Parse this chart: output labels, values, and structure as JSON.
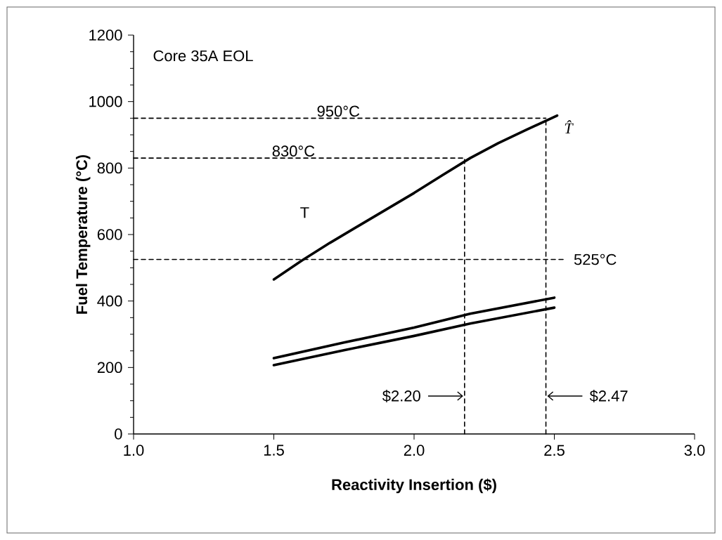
{
  "chart_data": {
    "type": "line",
    "xlabel": "Reactivity Insertion ($)",
    "ylabel": "Fuel Temperature (°C)",
    "xlim": [
      1,
      3
    ],
    "ylim": [
      0,
      1200
    ],
    "xticks": [
      {
        "value": 1,
        "label": "1.0"
      },
      {
        "value": 1.5,
        "label": "1.5"
      },
      {
        "value": 2,
        "label": "2.0"
      },
      {
        "value": 2.5,
        "label": "2.5"
      },
      {
        "value": 3,
        "label": "3.0"
      }
    ],
    "yticks": [
      0,
      {
        "value": 50,
        "label": null
      },
      {
        "value": 100,
        "label": null
      },
      {
        "value": 150,
        "label": null
      },
      200,
      {
        "value": 250,
        "label": null
      },
      {
        "value": 300,
        "label": null
      },
      {
        "value": 350,
        "label": null
      },
      400,
      {
        "value": 450,
        "label": null
      },
      {
        "value": 500,
        "label": null
      },
      {
        "value": 550,
        "label": null
      },
      600,
      {
        "value": 650,
        "label": null
      },
      {
        "value": 700,
        "label": null
      },
      {
        "value": 750,
        "label": null
      },
      800,
      {
        "value": 850,
        "label": null
      },
      {
        "value": 900,
        "label": null
      },
      {
        "value": 950,
        "label": null
      },
      1000,
      {
        "value": 1050,
        "label": null
      },
      {
        "value": 1100,
        "label": null
      },
      {
        "value": 1150,
        "label": null
      },
      1200
    ],
    "grid": false,
    "marker": "none",
    "line_style": "solid",
    "series": [
      {
        "color": "#000000",
        "x": [
          1.5,
          1.6,
          1.7,
          1.8,
          1.9,
          2.0,
          2.1,
          2.2,
          2.3,
          2.4,
          2.51
        ],
        "values": [
          465,
          522,
          575,
          625,
          675,
          725,
          778,
          830,
          875,
          915,
          958
        ]
      },
      {
        "color": "#000000",
        "x": [
          1.5,
          1.75,
          2.0,
          2.2,
          2.5
        ],
        "values": [
          228,
          275,
          320,
          362,
          410
        ]
      },
      {
        "color": "#000000",
        "x": [
          1.5,
          1.75,
          2.0,
          2.2,
          2.5
        ],
        "values": [
          207,
          252,
          295,
          332,
          380
        ]
      },
      {
        "color": "#000000",
        "line_style": "dashed",
        "x": [
          1.0,
          2.47
        ],
        "values": [
          950,
          950
        ]
      },
      {
        "color": "#000000",
        "line_style": "dashed",
        "x": [
          1.0,
          2.18
        ],
        "values": [
          830,
          830
        ]
      },
      {
        "color": "#000000",
        "line_style": "dashed",
        "x": [
          1.0,
          2.54
        ],
        "values": [
          525,
          525
        ]
      },
      {
        "color": "#000000",
        "line_style": "dashed",
        "x": [
          2.18,
          2.18
        ],
        "values": [
          0,
          830
        ]
      },
      {
        "color": "#000000",
        "line_style": "dashed",
        "x": [
          2.47,
          2.47
        ],
        "values": [
          0,
          950
        ]
      }
    ],
    "annotations": [
      "Core 35A EOL",
      {
        "text": "950°C",
        "x": 1.73,
        "y": 950
      },
      {
        "text": "830°C",
        "x": 1.57,
        "y": 830
      },
      "525°C",
      "T",
      "*T̂*",
      {
        "text": "$2.20",
        "x": 2.18,
        "y": 114
      },
      {
        "text": "$2.47",
        "x": 2.47,
        "y": 114
      }
    ]
  }
}
